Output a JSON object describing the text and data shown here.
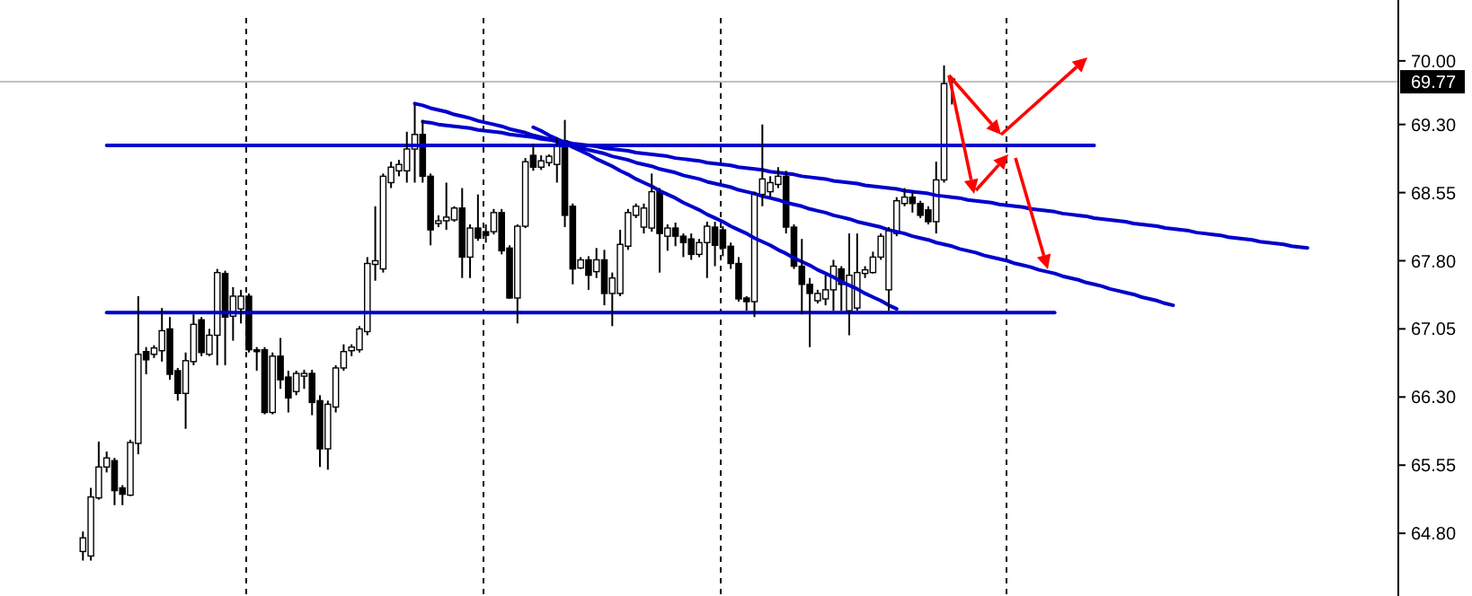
{
  "chart_data": {
    "type": "candlestick",
    "tick_labels": "y",
    "categories": [
      null,
      null,
      null,
      null,
      null,
      null,
      null,
      null,
      null,
      null,
      null,
      null,
      null,
      null,
      null,
      null,
      null,
      null,
      null,
      null,
      null,
      null,
      null,
      null,
      null,
      null,
      null,
      null,
      null,
      null,
      null,
      null,
      null,
      null,
      null,
      null,
      null,
      null,
      null,
      null,
      null,
      null,
      null,
      null,
      null,
      null,
      null,
      null,
      null,
      null,
      null,
      null,
      null,
      null,
      null,
      null,
      null,
      null,
      null,
      null,
      null,
      null,
      null,
      null,
      null,
      null,
      null,
      null,
      null,
      null,
      null,
      null,
      null,
      null,
      null,
      null,
      null,
      null,
      null,
      null,
      null,
      null,
      null,
      null,
      null,
      null,
      null,
      null,
      null,
      null,
      null,
      null,
      null,
      null,
      null,
      null,
      null,
      null,
      null,
      null,
      null,
      null,
      null,
      null,
      null,
      null,
      null,
      null,
      null,
      null,
      null,
      null,
      null,
      null,
      null,
      null,
      null,
      null,
      null,
      null,
      null,
      null,
      null,
      null,
      null,
      null,
      null,
      null,
      null,
      null,
      null,
      null,
      null,
      null,
      null,
      null,
      null,
      null,
      null,
      null,
      null,
      null,
      null,
      null,
      null,
      null,
      null,
      null,
      null,
      null,
      null,
      null,
      null,
      null,
      null,
      null,
      null,
      null,
      null,
      null,
      null,
      null,
      null,
      null,
      null,
      null,
      null,
      null,
      null,
      null,
      null,
      null,
      null,
      null,
      null,
      null,
      null
    ],
    "ohlc": [
      null,
      null,
      null,
      null,
      null,
      null,
      null,
      null,
      null,
      null,
      [
        64.6,
        64.82,
        64.5,
        64.75
      ],
      [
        64.55,
        65.3,
        64.5,
        65.2
      ],
      [
        65.19,
        65.81,
        65.17,
        65.53
      ],
      [
        65.53,
        65.7,
        65.47,
        65.63
      ],
      [
        65.6,
        65.63,
        65.11,
        65.27
      ],
      [
        65.3,
        65.33,
        65.11,
        65.23
      ],
      [
        65.22,
        65.83,
        65.21,
        65.8
      ],
      [
        65.79,
        67.41,
        65.67,
        66.77
      ],
      [
        66.8,
        66.85,
        66.55,
        66.71
      ],
      [
        66.77,
        66.87,
        66.73,
        66.84
      ],
      [
        66.81,
        67.28,
        66.69,
        67.03
      ],
      [
        67.05,
        67.18,
        66.49,
        66.55
      ],
      [
        66.59,
        66.62,
        66.26,
        66.34
      ],
      [
        66.34,
        66.79,
        65.95,
        66.7
      ],
      [
        66.69,
        67.21,
        66.65,
        67.1
      ],
      [
        67.15,
        67.18,
        66.75,
        66.79
      ],
      [
        66.77,
        67.05,
        66.75,
        66.98
      ],
      [
        66.98,
        67.71,
        66.65,
        67.67
      ],
      [
        67.66,
        67.69,
        66.65,
        67.18
      ],
      [
        67.19,
        67.51,
        66.92,
        67.41
      ],
      [
        67.27,
        67.48,
        67.11,
        67.41
      ],
      [
        67.41,
        67.44,
        66.79,
        66.82
      ],
      [
        66.82,
        66.85,
        66.59,
        66.8
      ],
      [
        66.82,
        66.85,
        66.11,
        66.13
      ],
      [
        66.13,
        66.79,
        66.11,
        66.75
      ],
      [
        66.75,
        66.95,
        66.39,
        66.49
      ],
      [
        66.52,
        66.59,
        66.13,
        66.29
      ],
      [
        66.36,
        66.59,
        66.32,
        66.56
      ],
      [
        66.53,
        66.6,
        66.39,
        66.56
      ],
      [
        66.56,
        66.6,
        66.1,
        66.24
      ],
      [
        66.26,
        66.32,
        65.53,
        65.73
      ],
      [
        65.73,
        66.26,
        65.5,
        66.22
      ],
      [
        66.19,
        66.65,
        66.13,
        66.62
      ],
      [
        66.62,
        66.88,
        66.59,
        66.8
      ],
      [
        66.81,
        66.88,
        66.75,
        66.85
      ],
      [
        66.82,
        67.08,
        66.79,
        67.05
      ],
      [
        67.02,
        67.84,
        66.98,
        67.77
      ],
      [
        67.76,
        68.4,
        67.58,
        67.8
      ],
      [
        67.71,
        68.76,
        67.67,
        68.73
      ],
      [
        68.66,
        68.89,
        68.6,
        68.83
      ],
      [
        68.79,
        68.91,
        68.73,
        68.86
      ],
      [
        68.79,
        69.22,
        68.66,
        69.03
      ],
      [
        69.03,
        69.52,
        68.66,
        69.19
      ],
      [
        69.19,
        69.35,
        68.66,
        68.73
      ],
      [
        68.73,
        68.76,
        67.97,
        68.14
      ],
      [
        68.21,
        68.3,
        68.17,
        68.24
      ],
      [
        68.24,
        68.66,
        68.14,
        68.28
      ],
      [
        68.25,
        68.4,
        68.23,
        68.38
      ],
      [
        68.38,
        68.6,
        67.61,
        67.84
      ],
      [
        67.84,
        68.2,
        67.61,
        68.16
      ],
      [
        68.16,
        68.53,
        68.02,
        68.05
      ],
      [
        68.12,
        68.2,
        68.0,
        68.08
      ],
      [
        68.12,
        68.37,
        68.09,
        68.33
      ],
      [
        68.33,
        68.37,
        67.87,
        67.91
      ],
      [
        67.94,
        67.97,
        67.38,
        67.39
      ],
      [
        67.39,
        68.2,
        67.11,
        68.18
      ],
      [
        68.18,
        68.93,
        68.16,
        68.89
      ],
      [
        68.96,
        69.09,
        68.79,
        68.83
      ],
      [
        68.83,
        68.96,
        68.8,
        68.9
      ],
      [
        68.88,
        68.97,
        68.84,
        68.95
      ],
      [
        68.86,
        69.16,
        68.66,
        69.06
      ],
      [
        69.12,
        69.35,
        68.17,
        68.3
      ],
      [
        68.4,
        68.43,
        67.54,
        67.71
      ],
      [
        67.72,
        67.84,
        67.71,
        67.81
      ],
      [
        67.81,
        67.85,
        67.48,
        67.64
      ],
      [
        67.68,
        67.94,
        67.61,
        67.81
      ],
      [
        67.81,
        67.92,
        67.31,
        67.44
      ],
      [
        67.44,
        67.67,
        67.08,
        67.61
      ],
      [
        67.44,
        68.14,
        67.41,
        67.98
      ],
      [
        67.96,
        68.37,
        67.92,
        68.33
      ],
      [
        68.3,
        68.43,
        68.27,
        68.4
      ],
      [
        68.17,
        68.43,
        68.1,
        68.38
      ],
      [
        68.16,
        68.76,
        68.12,
        68.56
      ],
      [
        68.56,
        68.6,
        67.67,
        68.1
      ],
      [
        68.07,
        68.2,
        67.91,
        68.16
      ],
      [
        68.16,
        68.22,
        67.96,
        68.07
      ],
      [
        68.07,
        68.1,
        67.84,
        68.0
      ],
      [
        68.04,
        68.1,
        67.81,
        67.87
      ],
      [
        67.87,
        68.04,
        67.84,
        68.0
      ],
      [
        68.0,
        68.23,
        67.61,
        68.18
      ],
      [
        68.17,
        68.23,
        67.74,
        67.97
      ],
      [
        68.14,
        68.18,
        67.85,
        67.94
      ],
      [
        67.96,
        68.0,
        67.71,
        67.77
      ],
      [
        67.77,
        67.84,
        67.35,
        67.38
      ],
      [
        67.39,
        67.41,
        67.25,
        67.35
      ],
      [
        67.35,
        68.56,
        67.18,
        68.53
      ],
      [
        68.53,
        69.3,
        68.4,
        68.7
      ],
      [
        68.56,
        68.73,
        68.5,
        68.66
      ],
      [
        68.64,
        68.83,
        68.6,
        68.73
      ],
      [
        68.73,
        68.79,
        68.1,
        68.17
      ],
      [
        68.17,
        68.2,
        67.71,
        67.74
      ],
      [
        67.74,
        68.04,
        67.21,
        67.54
      ],
      [
        67.54,
        67.61,
        66.85,
        67.44
      ],
      [
        67.36,
        67.48,
        67.33,
        67.44
      ],
      [
        67.38,
        67.64,
        67.31,
        67.48
      ],
      [
        67.48,
        67.81,
        67.25,
        67.74
      ],
      [
        67.71,
        67.74,
        67.25,
        67.54
      ],
      [
        67.25,
        68.1,
        66.98,
        67.64
      ],
      [
        67.28,
        68.1,
        67.25,
        67.67
      ],
      [
        67.66,
        67.74,
        67.61,
        67.7
      ],
      [
        67.67,
        67.9,
        67.66,
        67.84
      ],
      [
        67.84,
        68.1,
        67.81,
        68.07
      ],
      [
        67.48,
        68.17,
        67.25,
        68.13
      ],
      [
        68.1,
        68.5,
        68.07,
        68.46
      ],
      [
        68.43,
        68.6,
        68.4,
        68.5
      ],
      [
        68.5,
        68.56,
        68.33,
        68.43
      ],
      [
        68.43,
        68.46,
        68.27,
        68.3
      ],
      [
        68.36,
        68.4,
        68.2,
        68.23
      ],
      [
        68.23,
        68.89,
        68.1,
        68.69
      ],
      [
        68.69,
        69.95,
        68.66,
        69.75
      ],
      [
        69.8,
        69.82,
        69.52,
        69.77
      ],
      null,
      null,
      null,
      null,
      null,
      null,
      null,
      null,
      null,
      null,
      null,
      null,
      null,
      null,
      null,
      null,
      null,
      null,
      null,
      null,
      null,
      null,
      null,
      null,
      null,
      null,
      null,
      null,
      null,
      null,
      null,
      null,
      null,
      null,
      null,
      null,
      null,
      null,
      null,
      null,
      null,
      null,
      null,
      null,
      null,
      null,
      null,
      null,
      null,
      null,
      null,
      null,
      null,
      null,
      null,
      null
    ],
    "series": [
      {
        "type": "line",
        "color": "#0000cc",
        "values": [
          null,
          null,
          null,
          null,
          null,
          null,
          null,
          null,
          null,
          null,
          null,
          null,
          null,
          69.07,
          69.07,
          69.07,
          69.07,
          69.07,
          69.07,
          69.07,
          69.07,
          69.07,
          69.07,
          69.07,
          69.07,
          69.07,
          69.07,
          69.07,
          69.07,
          69.07,
          69.07,
          69.07,
          69.07,
          69.07,
          69.07,
          69.07,
          69.07,
          69.07,
          69.07,
          69.07,
          69.07,
          69.07,
          69.07,
          69.07,
          69.07,
          69.07,
          69.07,
          69.07,
          69.07,
          69.07,
          69.07,
          69.07,
          69.07,
          69.07,
          69.07,
          69.07,
          69.07,
          69.07,
          69.07,
          69.07,
          69.07,
          69.07,
          69.07,
          69.07,
          69.07,
          69.07,
          69.07,
          69.07,
          69.07,
          69.07,
          69.07,
          69.07,
          69.07,
          69.07,
          69.07,
          69.07,
          69.07,
          69.07,
          69.07,
          69.07,
          69.07,
          69.07,
          69.07,
          69.07,
          69.07,
          69.07,
          69.07,
          69.07,
          69.07,
          69.07,
          69.07,
          69.07,
          69.07,
          69.07,
          69.07,
          69.07,
          69.07,
          69.07,
          69.07,
          69.07,
          69.07,
          69.07,
          69.07,
          69.07,
          69.07,
          69.07,
          69.07,
          69.07,
          69.07,
          69.07,
          69.07,
          69.07,
          69.07,
          69.07,
          69.07,
          69.07,
          69.07,
          69.07,
          69.07,
          69.07,
          69.07,
          69.07,
          69.07,
          69.07,
          69.07,
          69.07,
          69.07,
          69.07,
          69.07,
          69.07,
          69.07,
          69.07,
          69.07,
          69.07,
          69.07,
          69.07,
          69.07,
          69.07,
          69.07,
          null,
          null,
          null,
          null,
          null,
          null,
          null,
          null,
          null,
          null,
          null,
          null,
          null,
          null,
          null,
          null,
          null,
          null,
          null,
          null,
          null,
          null,
          null,
          null,
          null,
          null,
          null,
          null,
          null,
          null,
          null,
          null,
          null,
          null,
          null,
          null,
          null,
          null
        ]
      },
      {
        "type": "line",
        "color": "#0000cc",
        "values": [
          null,
          null,
          null,
          null,
          null,
          null,
          null,
          null,
          null,
          null,
          null,
          null,
          null,
          67.23,
          67.23,
          67.23,
          67.23,
          67.23,
          67.23,
          67.23,
          67.23,
          67.23,
          67.23,
          67.23,
          67.23,
          67.23,
          67.23,
          67.23,
          67.23,
          67.23,
          67.23,
          67.23,
          67.23,
          67.23,
          67.23,
          67.23,
          67.23,
          67.23,
          67.23,
          67.23,
          67.23,
          67.23,
          67.23,
          67.23,
          67.23,
          67.23,
          67.23,
          67.23,
          67.23,
          67.23,
          67.23,
          67.23,
          67.23,
          67.23,
          67.23,
          67.23,
          67.23,
          67.23,
          67.23,
          67.23,
          67.23,
          67.23,
          67.23,
          67.23,
          67.23,
          67.23,
          67.23,
          67.23,
          67.23,
          67.23,
          67.23,
          67.23,
          67.23,
          67.23,
          67.23,
          67.23,
          67.23,
          67.23,
          67.23,
          67.23,
          67.23,
          67.23,
          67.23,
          67.23,
          67.23,
          67.23,
          67.23,
          67.23,
          67.23,
          67.23,
          67.23,
          67.23,
          67.23,
          67.23,
          67.23,
          67.23,
          67.23,
          67.23,
          67.23,
          67.23,
          67.23,
          67.23,
          67.23,
          67.23,
          67.23,
          67.23,
          67.23,
          67.23,
          67.23,
          67.23,
          67.23,
          67.23,
          67.23,
          67.23,
          67.23,
          67.23,
          67.23,
          67.23,
          67.23,
          67.23,
          67.23,
          67.23,
          67.23,
          67.23,
          67.23,
          67.23,
          67.23,
          67.23,
          67.23,
          67.23,
          67.23,
          67.23,
          67.23,
          67.23,
          null,
          null,
          null,
          null,
          null,
          null,
          null,
          null,
          null,
          null,
          null,
          null,
          null,
          null,
          null,
          null,
          null,
          null,
          null,
          null,
          null,
          null,
          null,
          null,
          null,
          null,
          null,
          null,
          null,
          null,
          null,
          null,
          null,
          null,
          null,
          null,
          null,
          null,
          null,
          null,
          null,
          null,
          null
        ]
      },
      {
        "type": "line",
        "color": "#0000cc",
        "values": [
          null,
          null,
          null,
          null,
          null,
          null,
          null,
          null,
          null,
          null,
          null,
          null,
          null,
          null,
          null,
          null,
          null,
          null,
          null,
          null,
          null,
          null,
          null,
          null,
          null,
          null,
          null,
          null,
          null,
          null,
          null,
          null,
          null,
          null,
          null,
          null,
          null,
          null,
          null,
          null,
          null,
          null,
          null,
          null,
          null,
          null,
          null,
          null,
          null,
          null,
          null,
          null,
          null,
          69.33,
          69.32,
          69.3,
          69.29,
          69.28,
          69.27,
          69.26,
          69.24,
          69.23,
          69.22,
          69.21,
          69.19,
          69.18,
          69.17,
          69.16,
          69.14,
          69.13,
          69.12,
          69.11,
          69.09,
          69.08,
          69.07,
          69.06,
          69.04,
          69.03,
          69.02,
          69.01,
          68.99,
          68.98,
          68.97,
          68.96,
          68.95,
          68.93,
          68.92,
          68.91,
          68.9,
          68.88,
          68.87,
          68.86,
          68.85,
          68.83,
          68.82,
          68.81,
          68.8,
          68.78,
          68.77,
          68.76,
          68.75,
          68.73,
          68.72,
          68.71,
          68.7,
          68.68,
          68.67,
          68.66,
          68.65,
          68.63,
          68.62,
          68.61,
          68.6,
          68.59,
          68.57,
          68.56,
          68.55,
          68.54,
          68.52,
          68.51,
          68.5,
          68.49,
          68.47,
          68.46,
          68.45,
          68.44,
          68.42,
          68.41,
          68.4,
          68.39,
          68.37,
          68.36,
          68.35,
          68.34,
          68.32,
          68.31,
          68.3,
          68.29,
          68.27,
          68.26,
          68.25,
          68.24,
          68.23,
          68.21,
          68.2,
          68.19,
          68.18,
          68.16,
          68.15,
          68.14,
          68.13,
          68.11,
          68.1,
          68.09,
          68.08,
          68.06,
          68.05,
          68.04,
          68.03,
          68.01,
          68.0,
          67.99,
          67.98,
          67.96,
          67.95,
          67.94,
          null,
          null,
          null,
          null,
          null,
          null,
          null,
          null,
          null,
          null,
          null
        ]
      },
      {
        "type": "line",
        "color": "#0000cc",
        "values": [
          null,
          null,
          null,
          null,
          null,
          null,
          null,
          null,
          null,
          null,
          null,
          null,
          null,
          null,
          null,
          null,
          null,
          null,
          null,
          null,
          null,
          null,
          null,
          null,
          null,
          null,
          null,
          null,
          null,
          null,
          null,
          null,
          null,
          null,
          null,
          null,
          null,
          null,
          null,
          null,
          null,
          null,
          null,
          null,
          null,
          null,
          null,
          null,
          null,
          null,
          null,
          null,
          69.53,
          69.51,
          69.48,
          69.46,
          69.44,
          69.41,
          69.39,
          69.37,
          69.34,
          69.32,
          69.3,
          69.28,
          69.25,
          69.23,
          69.21,
          69.18,
          69.16,
          69.14,
          69.11,
          69.09,
          69.07,
          69.04,
          69.02,
          69.0,
          68.98,
          68.95,
          68.93,
          68.91,
          68.88,
          68.86,
          68.84,
          68.81,
          68.79,
          68.77,
          68.74,
          68.72,
          68.7,
          68.67,
          68.65,
          68.63,
          68.61,
          68.58,
          68.56,
          68.54,
          68.51,
          68.49,
          68.47,
          68.44,
          68.42,
          68.4,
          68.37,
          68.35,
          68.33,
          68.3,
          68.28,
          68.26,
          68.23,
          68.21,
          68.19,
          68.17,
          68.14,
          68.12,
          68.1,
          68.07,
          68.05,
          68.03,
          68.0,
          67.98,
          67.96,
          67.93,
          67.91,
          67.89,
          67.86,
          67.84,
          67.82,
          67.8,
          67.77,
          67.75,
          67.73,
          67.7,
          67.68,
          67.66,
          67.63,
          67.61,
          67.59,
          67.56,
          67.54,
          67.52,
          67.49,
          67.47,
          67.45,
          67.43,
          67.4,
          67.38,
          67.36,
          67.33,
          67.31,
          null,
          null,
          null,
          null,
          null,
          null,
          null,
          null,
          null,
          null,
          null,
          null,
          null,
          null,
          null,
          null,
          null,
          null,
          null,
          null,
          null,
          null,
          null,
          null,
          null,
          null,
          null,
          null
        ]
      },
      {
        "type": "line",
        "color": "#0000cc",
        "values": [
          null,
          null,
          null,
          null,
          null,
          null,
          null,
          null,
          null,
          null,
          null,
          null,
          null,
          null,
          null,
          null,
          null,
          null,
          null,
          null,
          null,
          null,
          null,
          null,
          null,
          null,
          null,
          null,
          null,
          null,
          null,
          null,
          null,
          null,
          null,
          null,
          null,
          null,
          null,
          null,
          null,
          null,
          null,
          null,
          null,
          null,
          null,
          null,
          null,
          null,
          null,
          null,
          null,
          null,
          null,
          null,
          null,
          null,
          null,
          null,
          null,
          null,
          null,
          null,
          null,
          null,
          null,
          69.27,
          69.23,
          69.18,
          69.14,
          69.1,
          69.05,
          69.01,
          68.97,
          68.92,
          68.88,
          68.84,
          68.79,
          68.75,
          68.7,
          68.66,
          68.62,
          68.57,
          68.53,
          68.49,
          68.44,
          68.4,
          68.36,
          68.31,
          68.27,
          68.23,
          68.18,
          68.14,
          68.1,
          68.05,
          68.01,
          67.97,
          67.92,
          67.88,
          67.83,
          67.79,
          67.75,
          67.7,
          67.66,
          67.62,
          67.57,
          67.53,
          67.49,
          67.44,
          67.4,
          67.36,
          67.31,
          67.27,
          null,
          null,
          null,
          null,
          null,
          null,
          null,
          null,
          null,
          null,
          null,
          null,
          null,
          null,
          null,
          null,
          null,
          null,
          null,
          null,
          null,
          null,
          null,
          null,
          null,
          null,
          null,
          null,
          null,
          null,
          null,
          null,
          null,
          null,
          null,
          null,
          null,
          null,
          null,
          null,
          null,
          null,
          null,
          null,
          null,
          null,
          null,
          null,
          null,
          null,
          null,
          null,
          null,
          null,
          null,
          null,
          null,
          null,
          null,
          null,
          null,
          null,
          null
        ]
      }
    ],
    "ref_lines": [
      {
        "axis": "y",
        "value": 69.77,
        "label": "69.77",
        "color": "#c0c0c0"
      }
    ],
    "ylim": [
      64.11,
      70.67
    ],
    "yticks": [
      {
        "value": 70,
        "label": "70.00"
      },
      {
        "value": 69.3,
        "label": "69.30"
      },
      {
        "value": 68.55,
        "label": "68.55"
      },
      {
        "value": 67.8,
        "label": "67.80"
      },
      {
        "value": 67.05,
        "label": "67.05"
      },
      {
        "value": 66.3,
        "label": "66.30"
      },
      {
        "value": 65.55,
        "label": "65.55"
      },
      {
        "value": 64.8,
        "label": "64.80"
      }
    ]
  }
}
